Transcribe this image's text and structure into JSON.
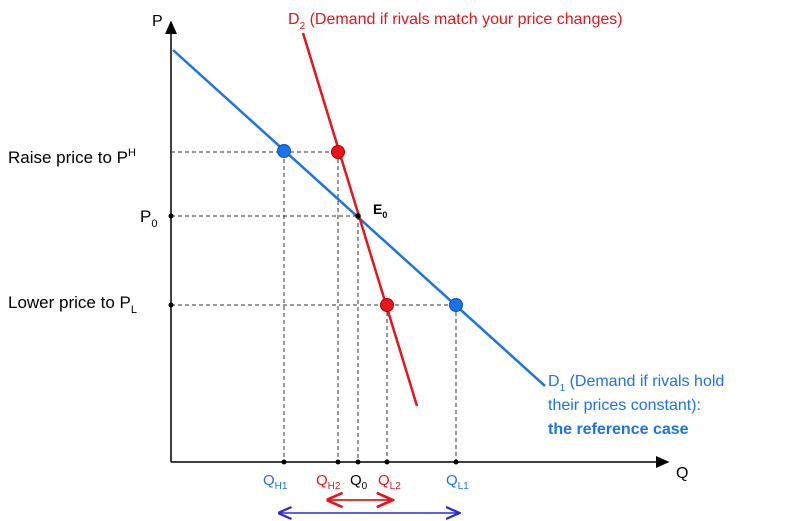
{
  "axes": {
    "y_label": "P",
    "x_label": "Q"
  },
  "price_labels": {
    "raise": {
      "text": "Raise price to P",
      "sup": "H"
    },
    "p0": {
      "text": "P",
      "sub": "0"
    },
    "lower": {
      "text": "Lower price to P",
      "sub": "L"
    }
  },
  "equilibrium_label": {
    "text": "E",
    "sub": "0"
  },
  "d2_label": {
    "prefix": "D",
    "sub": "2",
    "text": " (Demand if rivals match your price changes)"
  },
  "d1_label": {
    "prefix": "D",
    "sub": "1",
    "line1": " (Demand if rivals hold",
    "line2": "their prices constant):",
    "line3": "the reference case"
  },
  "quantity_labels": {
    "qh1": {
      "text": "Q",
      "sub": "H1"
    },
    "qh2": {
      "text": "Q",
      "sub": "H2"
    },
    "q0": {
      "text": "Q",
      "sub": "0"
    },
    "ql2": {
      "text": "Q",
      "sub": "L2"
    },
    "ql1": {
      "text": "Q",
      "sub": "L1"
    }
  },
  "colors": {
    "d1": "#1a73e8",
    "d2": "#e8141a",
    "axis": "#000000",
    "range_arrow_blue": "#2b2bdc",
    "range_arrow_red": "#e8141a"
  }
}
